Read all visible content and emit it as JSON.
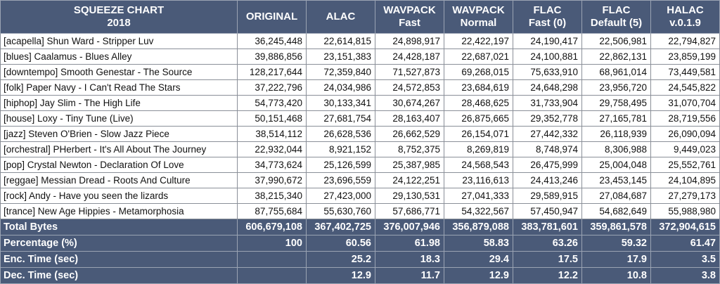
{
  "header": {
    "title_line1": "SQUEEZE CHART",
    "title_line2": "2018",
    "columns": [
      {
        "line1": "ORIGINAL",
        "line2": ""
      },
      {
        "line1": "ALAC",
        "line2": ""
      },
      {
        "line1": "WAVPACK",
        "line2": "Fast"
      },
      {
        "line1": "WAVPACK",
        "line2": "Normal"
      },
      {
        "line1": "FLAC",
        "line2": "Fast (0)"
      },
      {
        "line1": "FLAC",
        "line2": "Default (5)"
      },
      {
        "line1": "HALAC",
        "line2": "v.0.1.9"
      }
    ]
  },
  "rows": [
    {
      "name": "[acapella] Shun Ward - Stripper Luv",
      "values": [
        "36,245,448",
        "22,614,815",
        "24,898,917",
        "22,422,197",
        "24,190,417",
        "22,506,981",
        "22,794,827"
      ]
    },
    {
      "name": "[blues] Caalamus - Blues Alley",
      "values": [
        "39,886,856",
        "23,151,383",
        "24,428,187",
        "22,687,021",
        "24,100,881",
        "22,862,131",
        "23,859,199"
      ]
    },
    {
      "name": "[downtempo] Smooth Genestar - The Source",
      "values": [
        "128,217,644",
        "72,359,840",
        "71,527,873",
        "69,268,015",
        "75,633,910",
        "68,961,014",
        "73,449,581"
      ]
    },
    {
      "name": "[folk] Paper Navy - I Can't Read The Stars",
      "values": [
        "37,222,796",
        "24,034,986",
        "24,572,853",
        "23,684,619",
        "24,648,298",
        "23,956,720",
        "24,545,822"
      ]
    },
    {
      "name": "[hiphop] Jay Slim - The High Life",
      "values": [
        "54,773,420",
        "30,133,341",
        "30,674,267",
        "28,468,625",
        "31,733,904",
        "29,758,495",
        "31,070,704"
      ]
    },
    {
      "name": "[house] Loxy - Tiny Tune (Live)",
      "values": [
        "50,151,468",
        "27,681,754",
        "28,163,407",
        "26,875,665",
        "29,352,778",
        "27,165,781",
        "28,719,556"
      ]
    },
    {
      "name": "[jazz] Steven O'Brien - Slow Jazz Piece",
      "values": [
        "38,514,112",
        "26,628,536",
        "26,662,529",
        "26,154,071",
        "27,442,332",
        "26,118,939",
        "26,090,094"
      ]
    },
    {
      "name": "[orchestral] PHerbert - It's All About The Journey",
      "values": [
        "22,932,044",
        "8,921,152",
        "8,752,375",
        "8,269,819",
        "8,748,974",
        "8,306,988",
        "9,449,023"
      ]
    },
    {
      "name": "[pop] Crystal Newton - Declaration Of Love",
      "values": [
        "34,773,624",
        "25,126,599",
        "25,387,985",
        "24,568,543",
        "26,475,999",
        "25,004,048",
        "25,552,761"
      ]
    },
    {
      "name": "[reggae] Messian Dread - Roots And Culture",
      "values": [
        "37,990,672",
        "23,696,559",
        "24,122,251",
        "23,116,613",
        "24,413,246",
        "23,453,145",
        "24,104,895"
      ]
    },
    {
      "name": "[rock] Andy - Have you seen the lizards",
      "values": [
        "38,215,340",
        "27,423,000",
        "29,130,531",
        "27,041,333",
        "29,589,915",
        "27,084,687",
        "27,279,173"
      ]
    },
    {
      "name": "[trance] New Age Hippies - Metamorphosia",
      "values": [
        "87,755,684",
        "55,630,760",
        "57,686,771",
        "54,322,567",
        "57,450,947",
        "54,682,649",
        "55,988,980"
      ]
    }
  ],
  "summary": [
    {
      "label": "Total Bytes",
      "values": [
        "606,679,108",
        "367,402,725",
        "376,007,946",
        "356,879,088",
        "383,781,601",
        "359,861,578",
        "372,904,615"
      ]
    },
    {
      "label": "Percentage (%)",
      "values": [
        "100",
        "60.56",
        "61.98",
        "58.83",
        "63.26",
        "59.32",
        "61.47"
      ]
    },
    {
      "label": "Enc. Time (sec)",
      "values": [
        "",
        "25.2",
        "18.3",
        "29.4",
        "17.5",
        "17.9",
        "3.5"
      ]
    },
    {
      "label": "Dec. Time (sec)",
      "values": [
        "",
        "12.9",
        "11.7",
        "12.9",
        "12.2",
        "10.8",
        "3.8"
      ]
    }
  ],
  "colors": {
    "header_bg": "#4a5a78",
    "header_text": "#ffffff",
    "body_bg": "#ffffff",
    "grid": "#8a8f98"
  }
}
